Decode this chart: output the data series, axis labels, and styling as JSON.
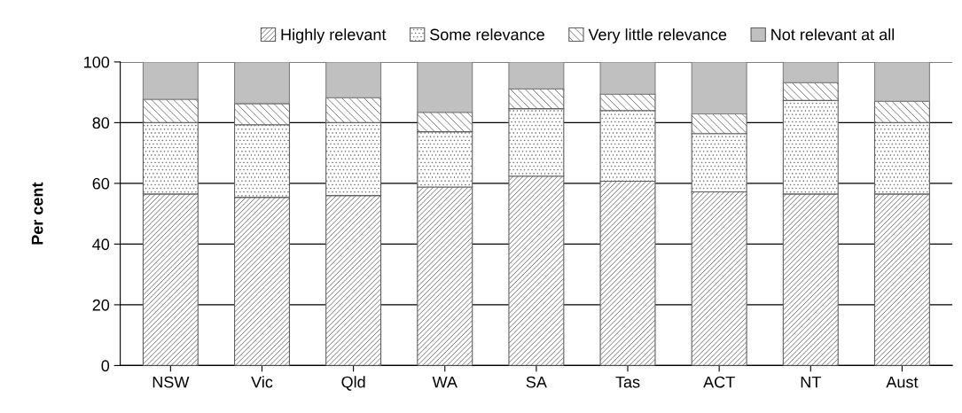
{
  "chart_data": {
    "type": "bar",
    "stacked": true,
    "ylabel": "Per cent",
    "categories": [
      "NSW",
      "Vic",
      "Qld",
      "WA",
      "SA",
      "Tas",
      "ACT",
      "NT",
      "Aust"
    ],
    "series": [
      {
        "name": "Highly relevant",
        "color": "#606060",
        "values": [
          56.5,
          55.4,
          56.0,
          58.8,
          62.4,
          60.7,
          57.2,
          56.5,
          56.5
        ]
      },
      {
        "name": "Some relevance",
        "color": "#606060",
        "values": [
          23.5,
          23.9,
          24.0,
          18.2,
          22.2,
          23.3,
          19.2,
          30.8,
          23.5
        ]
      },
      {
        "name": "Very little relevance",
        "color": "#606060",
        "values": [
          7.7,
          7.0,
          8.2,
          6.4,
          6.5,
          5.4,
          6.5,
          5.9,
          7.0
        ]
      },
      {
        "name": "Not relevant at all",
        "color": "#c0c0c0",
        "values": [
          12.3,
          13.7,
          11.8,
          16.6,
          8.9,
          10.6,
          17.1,
          6.8,
          13.0
        ]
      }
    ],
    "ylim": [
      0,
      100
    ],
    "yticks": [
      0,
      20,
      40,
      60,
      80,
      100
    ],
    "grid": "y",
    "legend": "top"
  }
}
